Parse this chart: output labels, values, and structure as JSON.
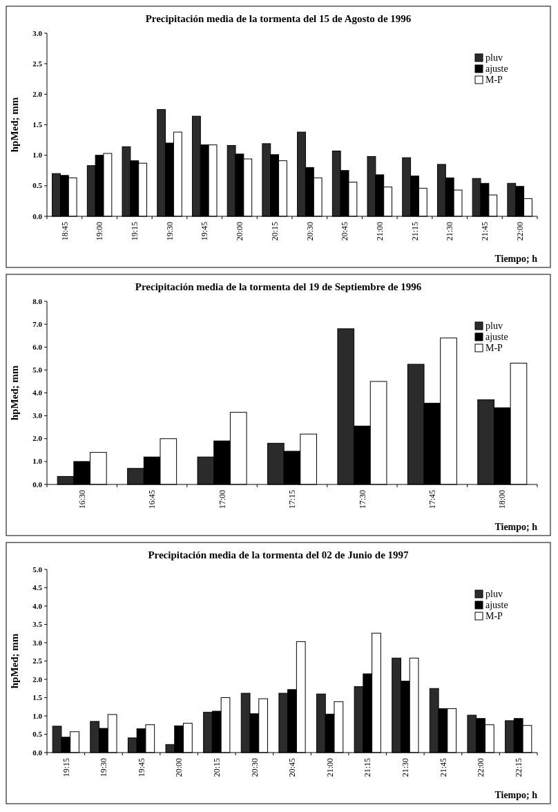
{
  "chart_data": [
    {
      "type": "bar",
      "title": "Precipitación media de la tormenta del 15 de Agosto de 1996",
      "xlabel": "Tiempo; h",
      "ylabel": "hpMed; mm",
      "categories": [
        "18:45",
        "19:00",
        "19:15",
        "19:30",
        "19:45",
        "20:00",
        "20:15",
        "20:30",
        "20:45",
        "21:00",
        "21:15",
        "21:30",
        "21:45",
        "22:00"
      ],
      "series": [
        {
          "name": "pluv",
          "color": "#2b2b2b",
          "values": [
            0.7,
            0.83,
            1.14,
            1.75,
            1.64,
            1.16,
            1.19,
            1.38,
            1.07,
            0.98,
            0.96,
            0.85,
            0.62,
            0.54
          ]
        },
        {
          "name": "ajuste",
          "color": "#000000",
          "values": [
            0.67,
            1.0,
            0.91,
            1.2,
            1.17,
            1.02,
            1.01,
            0.8,
            0.75,
            0.68,
            0.66,
            0.63,
            0.54,
            0.49
          ]
        },
        {
          "name": "M-P",
          "color": "#ffffff",
          "values": [
            0.63,
            1.03,
            0.87,
            1.38,
            1.17,
            0.94,
            0.91,
            0.63,
            0.56,
            0.48,
            0.46,
            0.43,
            0.35,
            0.29
          ]
        }
      ],
      "ylim": [
        0,
        3
      ],
      "yticks": [
        {
          "value": 0,
          "label": "0.0"
        },
        {
          "value": 0.5,
          "label": "0.5"
        },
        {
          "value": 1,
          "label": "1.0"
        },
        {
          "value": 1.5,
          "label": "1.5"
        },
        {
          "value": 2,
          "label": "2.0"
        },
        {
          "value": 2.5,
          "label": "2.5"
        },
        {
          "value": 3,
          "label": "3.0"
        }
      ],
      "grid": false,
      "legend": "top right"
    },
    {
      "type": "bar",
      "title": "Precipitación media de la tormenta del 19 de Septiembre de 1996",
      "xlabel": "Tiempo; h",
      "ylabel": "hpMed; mm",
      "categories": [
        "16:30",
        "16:45",
        "17:00",
        "17:15",
        "17:30",
        "17:45",
        "18:00"
      ],
      "series": [
        {
          "name": "pluv",
          "color": "#2b2b2b",
          "values": [
            0.35,
            0.7,
            1.2,
            1.8,
            6.8,
            5.25,
            3.7
          ]
        },
        {
          "name": "ajuste",
          "color": "#000000",
          "values": [
            1.0,
            1.2,
            1.9,
            1.45,
            2.55,
            3.55,
            3.35
          ]
        },
        {
          "name": "M-P",
          "color": "#ffffff",
          "values": [
            1.4,
            2.0,
            3.15,
            2.2,
            4.5,
            6.4,
            5.3
          ]
        }
      ],
      "ylim": [
        0,
        8
      ],
      "yticks": [
        {
          "value": 0,
          "label": "0.0"
        },
        {
          "value": 1,
          "label": "1.0"
        },
        {
          "value": 2,
          "label": "2.0"
        },
        {
          "value": 3,
          "label": "3.0"
        },
        {
          "value": 4,
          "label": "4.0"
        },
        {
          "value": 5,
          "label": "5.0"
        },
        {
          "value": 6,
          "label": "6.0"
        },
        {
          "value": 7,
          "label": "7.0"
        },
        {
          "value": 8,
          "label": "8.0"
        }
      ],
      "grid": false,
      "legend": "top right"
    },
    {
      "type": "bar",
      "title": "Precipitación media de la tormenta del 02 de Junio de 1997",
      "xlabel": "Tiempo; h",
      "ylabel": "hpMed; mm",
      "categories": [
        "19:15",
        "19:30",
        "19:45",
        "20:00",
        "20:15",
        "20:30",
        "20:45",
        "21:00",
        "21:15",
        "21:30",
        "21:45",
        "22:00",
        "22:15"
      ],
      "series": [
        {
          "name": "pluv",
          "color": "#2b2b2b",
          "values": [
            0.72,
            0.85,
            0.4,
            0.22,
            1.1,
            1.62,
            1.62,
            1.6,
            1.8,
            2.58,
            1.75,
            1.02,
            0.87
          ]
        },
        {
          "name": "ajuste",
          "color": "#000000",
          "values": [
            0.42,
            0.66,
            0.65,
            0.73,
            1.13,
            1.06,
            1.72,
            1.05,
            2.15,
            1.95,
            1.2,
            0.93,
            0.93
          ]
        },
        {
          "name": "M-P",
          "color": "#ffffff",
          "values": [
            0.57,
            1.04,
            0.76,
            0.8,
            1.5,
            1.47,
            3.03,
            1.39,
            3.26,
            2.58,
            1.2,
            0.76,
            0.74
          ]
        }
      ],
      "ylim": [
        0,
        5
      ],
      "yticks": [
        {
          "value": 0,
          "label": "0.0"
        },
        {
          "value": 0.5,
          "label": "0.5"
        },
        {
          "value": 1,
          "label": "1.0"
        },
        {
          "value": 1.5,
          "label": "1.5"
        },
        {
          "value": 2,
          "label": "2.0"
        },
        {
          "value": 2.5,
          "label": "2.5"
        },
        {
          "value": 3,
          "label": "3.0"
        },
        {
          "value": 3.5,
          "label": "3.5"
        },
        {
          "value": 4,
          "label": "4.0"
        },
        {
          "value": 4.5,
          "label": "4.5"
        },
        {
          "value": 5,
          "label": "5.0"
        }
      ],
      "grid": false,
      "legend": "top right"
    }
  ]
}
